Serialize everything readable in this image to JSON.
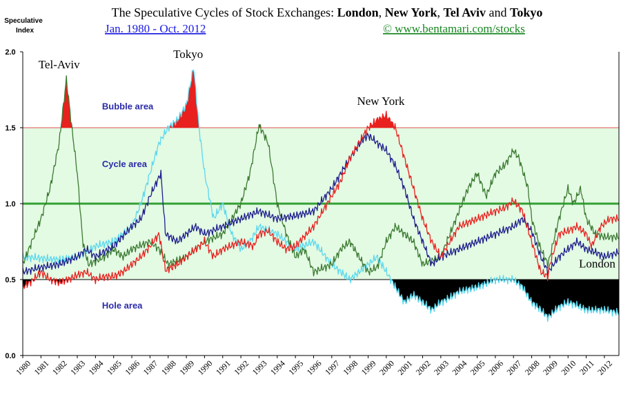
{
  "header": {
    "title_plain": "The Speculative Cycles of Stock Exchanges: ",
    "title_bold_1": "London",
    "sep_1": ", ",
    "title_bold_2": "New York",
    "sep_2": ", ",
    "title_bold_3": "Tel Aviv",
    "sep_3": " and ",
    "title_bold_4": "Tokyo",
    "subtitle": "Jan. 1980 - Oct. 2012",
    "credit": "©  www.bentamari.com/stocks"
  },
  "chart_data": {
    "type": "line",
    "ylabel_line1": "Speculative",
    "ylabel_line2": "Index",
    "ylim": [
      0,
      2
    ],
    "y_ticks": [
      "0.0",
      "0.5",
      "1.0",
      "1.5",
      "2.0"
    ],
    "x_range": [
      1980.0,
      2012.8
    ],
    "x_ticks": [
      "1980",
      "1981",
      "1982",
      "1983",
      "1984",
      "1985",
      "1986",
      "1987",
      "1988",
      "1989",
      "1990",
      "1991",
      "1992",
      "1993",
      "1994",
      "1995",
      "1996",
      "1997",
      "1998",
      "1999",
      "2000",
      "2001",
      "2002",
      "2003",
      "2004",
      "2005",
      "2006",
      "2007",
      "2008",
      "2009",
      "2010",
      "2011",
      "2012"
    ],
    "areas": [
      {
        "label": "Bubble area",
        "range": [
          1.5,
          2.0
        ],
        "color": "#ffffff"
      },
      {
        "label": "Cycle area",
        "range": [
          0.5,
          1.5
        ],
        "color": "#e3fae3"
      },
      {
        "label": "Hole area",
        "range": [
          0.0,
          0.5
        ],
        "color": "#ffffff"
      }
    ],
    "reference_lines": [
      {
        "y": 1.5,
        "color": "#e05050"
      },
      {
        "y": 1.0,
        "color": "#33a033"
      },
      {
        "y": 0.5,
        "color": "#000000"
      }
    ],
    "series": [
      {
        "name": "London",
        "color": "#e8201e",
        "x": [
          1980,
          1980.6,
          1981,
          1981.5,
          1982,
          1982.5,
          1983,
          1983.5,
          1984,
          1984.5,
          1985,
          1985.5,
          1986,
          1986.5,
          1987,
          1987.5,
          1987.85,
          1988.5,
          1989,
          1989.5,
          1990,
          1990.5,
          1991,
          1992,
          1992.7,
          1993,
          1993.5,
          1994,
          1994.5,
          1995,
          1996,
          1996.5,
          1997,
          1997.5,
          1998,
          1998.5,
          1999,
          1999.5,
          2000,
          2000.5,
          2001,
          2001.5,
          2002,
          2002.5,
          2003,
          2003.5,
          2004,
          2005,
          2006,
          2006.5,
          2007,
          2007.5,
          2008,
          2008.5,
          2008.9,
          2009,
          2009.5,
          2010,
          2010.5,
          2011,
          2011.3,
          2011.8,
          2012.3,
          2012.8
        ],
        "y": [
          0.45,
          0.5,
          0.55,
          0.5,
          0.48,
          0.5,
          0.53,
          0.55,
          0.5,
          0.52,
          0.52,
          0.55,
          0.6,
          0.65,
          0.72,
          0.8,
          0.56,
          0.6,
          0.65,
          0.7,
          0.75,
          0.65,
          0.7,
          0.75,
          0.72,
          0.8,
          0.82,
          0.75,
          0.7,
          0.72,
          0.85,
          0.95,
          1.05,
          1.15,
          1.3,
          1.4,
          1.5,
          1.55,
          1.58,
          1.5,
          1.3,
          1.1,
          0.9,
          0.75,
          0.65,
          0.75,
          0.85,
          0.9,
          0.95,
          0.97,
          1.02,
          0.95,
          0.75,
          0.55,
          0.52,
          0.6,
          0.8,
          0.82,
          0.85,
          0.8,
          0.72,
          0.85,
          0.9,
          0.9
        ]
      },
      {
        "name": "New York",
        "color": "#1e1e8c",
        "x": [
          1980,
          1981,
          1982,
          1983,
          1983.5,
          1984,
          1985,
          1986,
          1986.5,
          1987,
          1987.6,
          1987.85,
          1988.5,
          1989,
          1989.5,
          1990,
          1991,
          1992,
          1993,
          1994,
          1995,
          1996,
          1997,
          1998,
          1998.7,
          1999,
          1999.5,
          2000,
          2000.5,
          2001,
          2001.5,
          2002,
          2002.5,
          2003,
          2004,
          2005,
          2006,
          2007,
          2007.5,
          2008,
          2008.5,
          2008.9,
          2009.5,
          2010,
          2010.5,
          2011,
          2011.5,
          2012,
          2012.8
        ],
        "y": [
          0.55,
          0.58,
          0.6,
          0.65,
          0.7,
          0.65,
          0.72,
          0.85,
          0.9,
          1.05,
          1.2,
          0.8,
          0.75,
          0.8,
          0.85,
          0.8,
          0.85,
          0.9,
          0.95,
          0.9,
          0.92,
          0.95,
          1.1,
          1.3,
          1.42,
          1.45,
          1.4,
          1.35,
          1.25,
          1.1,
          0.9,
          0.75,
          0.6,
          0.65,
          0.7,
          0.75,
          0.8,
          0.85,
          0.9,
          0.82,
          0.65,
          0.55,
          0.65,
          0.7,
          0.75,
          0.7,
          0.68,
          0.65,
          0.68
        ]
      },
      {
        "name": "Tel-Aviv",
        "color": "#3c7a32",
        "x": [
          1980,
          1980.5,
          1981,
          1981.5,
          1982,
          1982.4,
          1982.7,
          1983,
          1983.3,
          1983.6,
          1984,
          1984.5,
          1985,
          1985.5,
          1986,
          1987,
          1987.5,
          1988,
          1989,
          1990,
          1991,
          1992,
          1992.5,
          1993,
          1993.5,
          1994,
          1994.5,
          1995,
          1995.5,
          1996,
          1997,
          1997.5,
          1998,
          1998.5,
          1999,
          1999.5,
          2000,
          2000.5,
          2001,
          2001.5,
          2002,
          2003,
          2003.5,
          2004,
          2004.5,
          2005,
          2005.5,
          2006,
          2006.5,
          2007,
          2007.3,
          2007.8,
          2008,
          2008.5,
          2008.9,
          2009.5,
          2010,
          2010.3,
          2010.7,
          2011,
          2011.5,
          2012,
          2012.8
        ],
        "y": [
          0.6,
          0.75,
          0.9,
          1.1,
          1.4,
          1.82,
          1.5,
          1.2,
          0.75,
          0.6,
          0.62,
          0.65,
          0.7,
          0.65,
          0.7,
          0.75,
          0.7,
          0.6,
          0.65,
          0.75,
          0.8,
          1.0,
          1.2,
          1.52,
          1.4,
          1.0,
          0.8,
          0.65,
          0.7,
          0.55,
          0.6,
          0.7,
          0.75,
          0.65,
          0.55,
          0.58,
          0.75,
          0.85,
          0.8,
          0.75,
          0.6,
          0.65,
          0.8,
          0.95,
          1.1,
          1.2,
          1.05,
          1.2,
          1.25,
          1.35,
          1.3,
          1.1,
          0.9,
          0.7,
          0.6,
          0.9,
          1.1,
          1.0,
          1.1,
          0.9,
          0.8,
          0.78,
          0.78
        ]
      },
      {
        "name": "Tokyo",
        "color": "#5ad8ee",
        "x": [
          1980,
          1981,
          1982,
          1983,
          1984,
          1985,
          1986,
          1986.5,
          1987,
          1987.5,
          1988,
          1988.5,
          1989,
          1989.4,
          1989.7,
          1990,
          1990.5,
          1991,
          1991.5,
          1992,
          1992.5,
          1993,
          1994,
          1995,
          1996,
          1997,
          1998,
          1998.5,
          1999,
          1999.5,
          2000,
          2000.5,
          2001,
          2001.5,
          2002,
          2002.5,
          2003,
          2003.5,
          2004,
          2005,
          2006,
          2007,
          2007.5,
          2008,
          2008.5,
          2008.9,
          2009.5,
          2010,
          2010.5,
          2011,
          2011.5,
          2012,
          2012.8
        ],
        "y": [
          0.65,
          0.64,
          0.63,
          0.65,
          0.72,
          0.75,
          0.85,
          1.0,
          1.2,
          1.4,
          1.5,
          1.55,
          1.65,
          1.9,
          1.5,
          1.2,
          0.9,
          1.0,
          0.8,
          0.7,
          0.75,
          0.85,
          0.8,
          0.7,
          0.75,
          0.6,
          0.5,
          0.55,
          0.6,
          0.65,
          0.55,
          0.45,
          0.35,
          0.4,
          0.35,
          0.3,
          0.35,
          0.38,
          0.42,
          0.45,
          0.5,
          0.5,
          0.45,
          0.35,
          0.3,
          0.25,
          0.32,
          0.35,
          0.33,
          0.3,
          0.3,
          0.3,
          0.28
        ]
      }
    ],
    "annotations": [
      {
        "text": "Tel-Aviv",
        "x": 1982.0,
        "y": 1.89
      },
      {
        "text": "Tokyo",
        "x": 1989.1,
        "y": 1.96
      },
      {
        "text": "New York",
        "x": 1999.7,
        "y": 1.65
      },
      {
        "text": "London",
        "x": 2011.6,
        "y": 0.58
      },
      {
        "text": "Bubble area",
        "x": 1985.5,
        "y": 1.62
      },
      {
        "text": "Cycle area",
        "x": 1985.5,
        "y": 1.24
      },
      {
        "text": "Hole area",
        "x": 1985.5,
        "y": 0.31
      }
    ]
  }
}
